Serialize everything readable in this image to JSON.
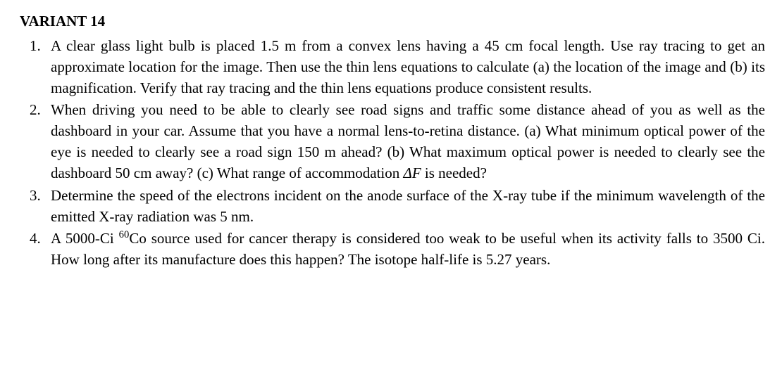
{
  "variant_title": "VARIANT 14",
  "problems": [
    {
      "number": "1.",
      "text": "A clear glass light bulb is placed 1.5 m from a convex lens having a 45 cm focal length. Use ray tracing to get an approximate location for the image. Then use the thin lens equations to calculate (a) the location of the image and (b) its magnification. Verify that ray tracing and the thin lens equations produce consistent results."
    },
    {
      "number": "2.",
      "text_before_delta": "When driving you need to be able to clearly see road signs and traffic some distance ahead of you as well as the dashboard in your car. Assume that you have a normal lens-to-retina distance. (a) What minimum optical power of the eye is needed to clearly see a road sign 150 m ahead? (b) What maximum optical power is needed to clearly see the dashboard 50 cm away? (c) What range of accommodation ",
      "delta_symbol": "ΔF",
      "text_after_delta": " is needed?"
    },
    {
      "number": "3.",
      "text": "Determine the speed of the electrons incident on the anode surface of the X-ray tube if the minimum wavelength of the emitted X-ray radiation was 5 nm."
    },
    {
      "number": "4.",
      "text_before_iso": "A 5000-Ci ",
      "iso_sup": "60",
      "iso_element": "Co",
      "text_after_iso": " source used for cancer therapy is considered too weak to be useful when its activity falls to 3500 Ci. How long after its manufacture does this happen? The isotope half-life is 5.27 years."
    }
  ]
}
